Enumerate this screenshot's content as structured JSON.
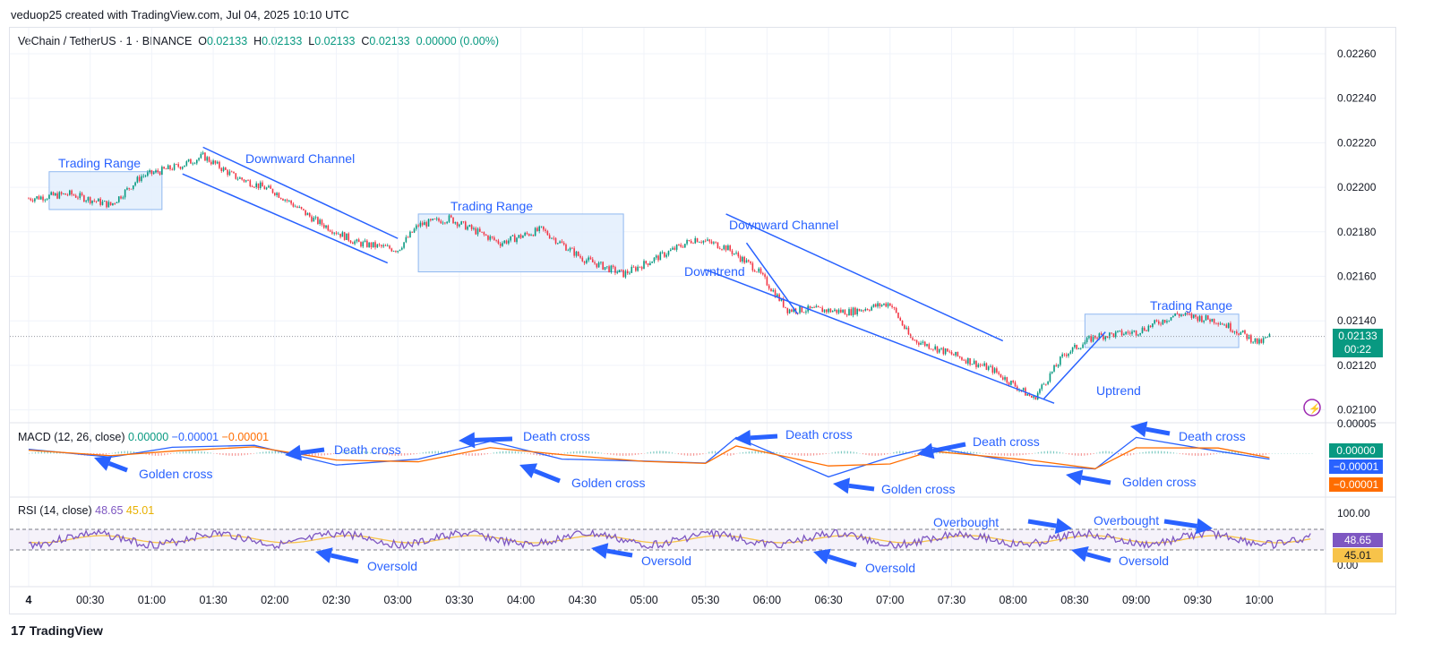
{
  "header": {
    "credit": "veduop25 created with TradingView.com, Jul 04, 2025 10:10 UTC"
  },
  "legend": {
    "symbol": "VeChain / TetherUS · 1 · BINANCE",
    "o_label": "O",
    "o": "0.02133",
    "h_label": "H",
    "h": "0.02133",
    "l_label": "L",
    "l": "0.02133",
    "c_label": "C",
    "c": "0.02133",
    "change": "0.00000 (0.00%)"
  },
  "macd_legend": {
    "title": "MACD (12, 26, close)",
    "v1": "0.00000",
    "v2": "−0.00001",
    "v3": "−0.00001"
  },
  "rsi_legend": {
    "title": "RSI (14, close)",
    "v1": "48.65",
    "v2": "45.01"
  },
  "price_tag": {
    "price": "0.02133",
    "countdown": "00:22"
  },
  "macd_tags": [
    "0.00000",
    "−0.00001",
    "−0.00001"
  ],
  "rsi_tags": [
    "48.65",
    "45.01"
  ],
  "footer": {
    "logo": "17",
    "brand": "TradingView"
  },
  "colors": {
    "up": "#089981",
    "down": "#f23645",
    "macd": "#2962ff",
    "signal": "#ff6d00",
    "rsi": "#7e57c2",
    "rsi_ma": "#f7c34a",
    "annotation": "#2962ff",
    "range_fill": "#e3eefd"
  },
  "annotations": [
    {
      "text": "Trading Range"
    },
    {
      "text": "Downward Channel"
    },
    {
      "text": "Trading Range"
    },
    {
      "text": "Downward Channel"
    },
    {
      "text": "Downtrend"
    },
    {
      "text": "Trading Range"
    },
    {
      "text": "Uptrend"
    },
    {
      "text": "Golden cross"
    },
    {
      "text": "Death cross"
    },
    {
      "text": "Death cross"
    },
    {
      "text": "Golden cross"
    },
    {
      "text": "Death cross"
    },
    {
      "text": "Golden cross"
    },
    {
      "text": "Death cross"
    },
    {
      "text": "Golden cross"
    },
    {
      "text": "Death cross"
    },
    {
      "text": "Oversold"
    },
    {
      "text": "Oversold"
    },
    {
      "text": "Oversold"
    },
    {
      "text": "Overbought"
    },
    {
      "text": "Overbought"
    },
    {
      "text": "Oversold"
    }
  ],
  "chart_data": {
    "type": "line",
    "title": "",
    "price_axis": {
      "ticks": [
        "0.02260",
        "0.02240",
        "0.02220",
        "0.02200",
        "0.02180",
        "0.02160",
        "0.02140",
        "0.02120",
        "0.02100"
      ],
      "ylim": [
        0.02095,
        0.02266
      ]
    },
    "time_axis": {
      "ticks": [
        "4",
        "00:30",
        "01:00",
        "01:30",
        "02:00",
        "02:30",
        "03:00",
        "03:30",
        "04:00",
        "04:30",
        "05:00",
        "05:30",
        "06:00",
        "06:30",
        "07:00",
        "07:30",
        "08:00",
        "08:30",
        "09:00",
        "09:30",
        "10:00"
      ]
    },
    "price_path": {
      "x": [
        "00:00",
        "00:20",
        "00:40",
        "00:55",
        "01:15",
        "01:25",
        "01:40",
        "02:00",
        "02:20",
        "02:40",
        "03:00",
        "03:10",
        "03:25",
        "03:50",
        "04:10",
        "04:30",
        "04:50",
        "05:10",
        "05:25",
        "05:40",
        "05:55",
        "06:10",
        "06:25",
        "06:40",
        "07:00",
        "07:10",
        "07:30",
        "07:50",
        "08:10",
        "08:25",
        "08:40",
        "09:00",
        "09:20",
        "09:40",
        "10:00",
        "10:05"
      ],
      "y": [
        0.02195,
        0.02197,
        0.02192,
        0.02205,
        0.0221,
        0.02214,
        0.02205,
        0.02198,
        0.02185,
        0.02175,
        0.02172,
        0.02183,
        0.02186,
        0.02175,
        0.02181,
        0.02168,
        0.02161,
        0.0217,
        0.02177,
        0.02173,
        0.02163,
        0.02145,
        0.02145,
        0.02144,
        0.02148,
        0.02132,
        0.02125,
        0.02118,
        0.02105,
        0.02125,
        0.02133,
        0.02135,
        0.02143,
        0.0214,
        0.0213,
        0.02133
      ]
    },
    "rsi_levels": {
      "axis_ticks": [
        "100.00",
        "0.00"
      ]
    },
    "macd_axis": {
      "ticks": [
        "0.00005"
      ]
    }
  }
}
